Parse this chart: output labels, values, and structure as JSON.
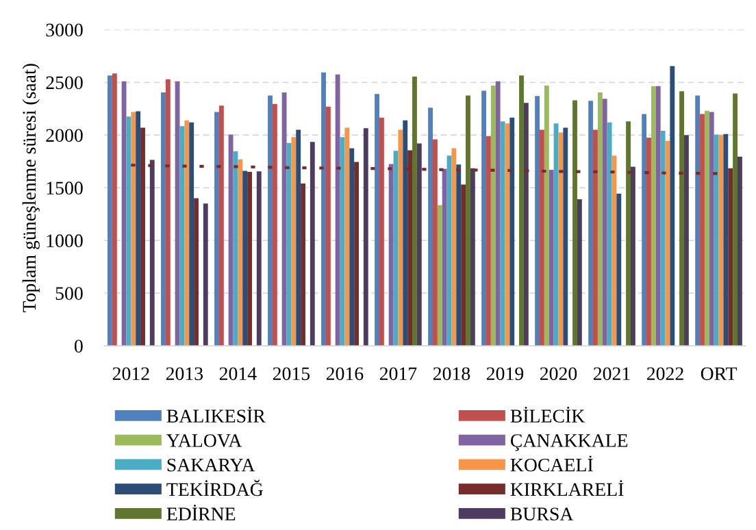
{
  "chart_data": {
    "type": "bar",
    "ylabel": "Toplam güneşlenme süresi (saat)",
    "categories": [
      "2012",
      "2013",
      "2014",
      "2015",
      "2016",
      "2017",
      "2018",
      "2019",
      "2020",
      "2021",
      "2022",
      "ORT"
    ],
    "series": [
      {
        "name": "BALIKESİR",
        "color": "#4f81bd",
        "values": [
          2565,
          2405,
          2220,
          2375,
          2595,
          2390,
          2260,
          2420,
          2370,
          2325,
          2200,
          2375
        ]
      },
      {
        "name": "BİLECİK",
        "color": "#c0504d",
        "values": [
          2585,
          2530,
          2280,
          2295,
          2270,
          2165,
          1960,
          1990,
          2050,
          2050,
          1975,
          2200
        ]
      },
      {
        "name": "YALOVA",
        "color": "#9bbb59",
        "values": [
          null,
          null,
          null,
          null,
          null,
          null,
          1335,
          2470,
          2470,
          2405,
          2465,
          2230
        ]
      },
      {
        "name": "ÇANAKKALE",
        "color": "#8064a2",
        "values": [
          2510,
          2510,
          2005,
          2405,
          2575,
          1725,
          1680,
          2510,
          1670,
          2345,
          2465,
          2220
        ]
      },
      {
        "name": "SAKARYA",
        "color": "#4bacc6",
        "values": [
          2175,
          2085,
          1845,
          1925,
          1980,
          1850,
          1805,
          2130,
          2110,
          2120,
          2040,
          2005
        ]
      },
      {
        "name": "KOCAELİ",
        "color": "#f79646",
        "values": [
          2220,
          2140,
          1770,
          1980,
          2070,
          2050,
          1875,
          2110,
          2025,
          1805,
          1945,
          2000
        ]
      },
      {
        "name": "TEKİRDAĞ",
        "color": "#2c4d75",
        "values": [
          2225,
          2120,
          1660,
          2050,
          1875,
          2140,
          1720,
          2165,
          2070,
          1445,
          2655,
          2010
        ]
      },
      {
        "name": "KIRKLARELİ",
        "color": "#772c2a",
        "values": [
          2070,
          1400,
          1650,
          1540,
          1745,
          1855,
          1530,
          null,
          null,
          null,
          null,
          1685
        ]
      },
      {
        "name": "EDİRNE",
        "color": "#5f7530",
        "values": [
          null,
          null,
          null,
          null,
          null,
          2555,
          2375,
          2565,
          2330,
          2130,
          2415,
          2395
        ]
      },
      {
        "name": "BURSA",
        "color": "#4d3b62",
        "values": [
          1765,
          1350,
          1655,
          1935,
          2065,
          1920,
          1685,
          2305,
          1390,
          1700,
          2000,
          1795
        ]
      },
      {
        "type": "line",
        "color": "#772c2a",
        "line_style": "dotted",
        "values": [
          1715,
          1705,
          1700,
          1690,
          1685,
          1680,
          1670,
          1665,
          1655,
          1650,
          1640,
          1635
        ]
      }
    ],
    "ylim": [
      0,
      3000
    ],
    "yticks": [
      0,
      500,
      1000,
      1500,
      2000,
      2500,
      3000
    ],
    "grid": "y",
    "legend": "bottom"
  }
}
